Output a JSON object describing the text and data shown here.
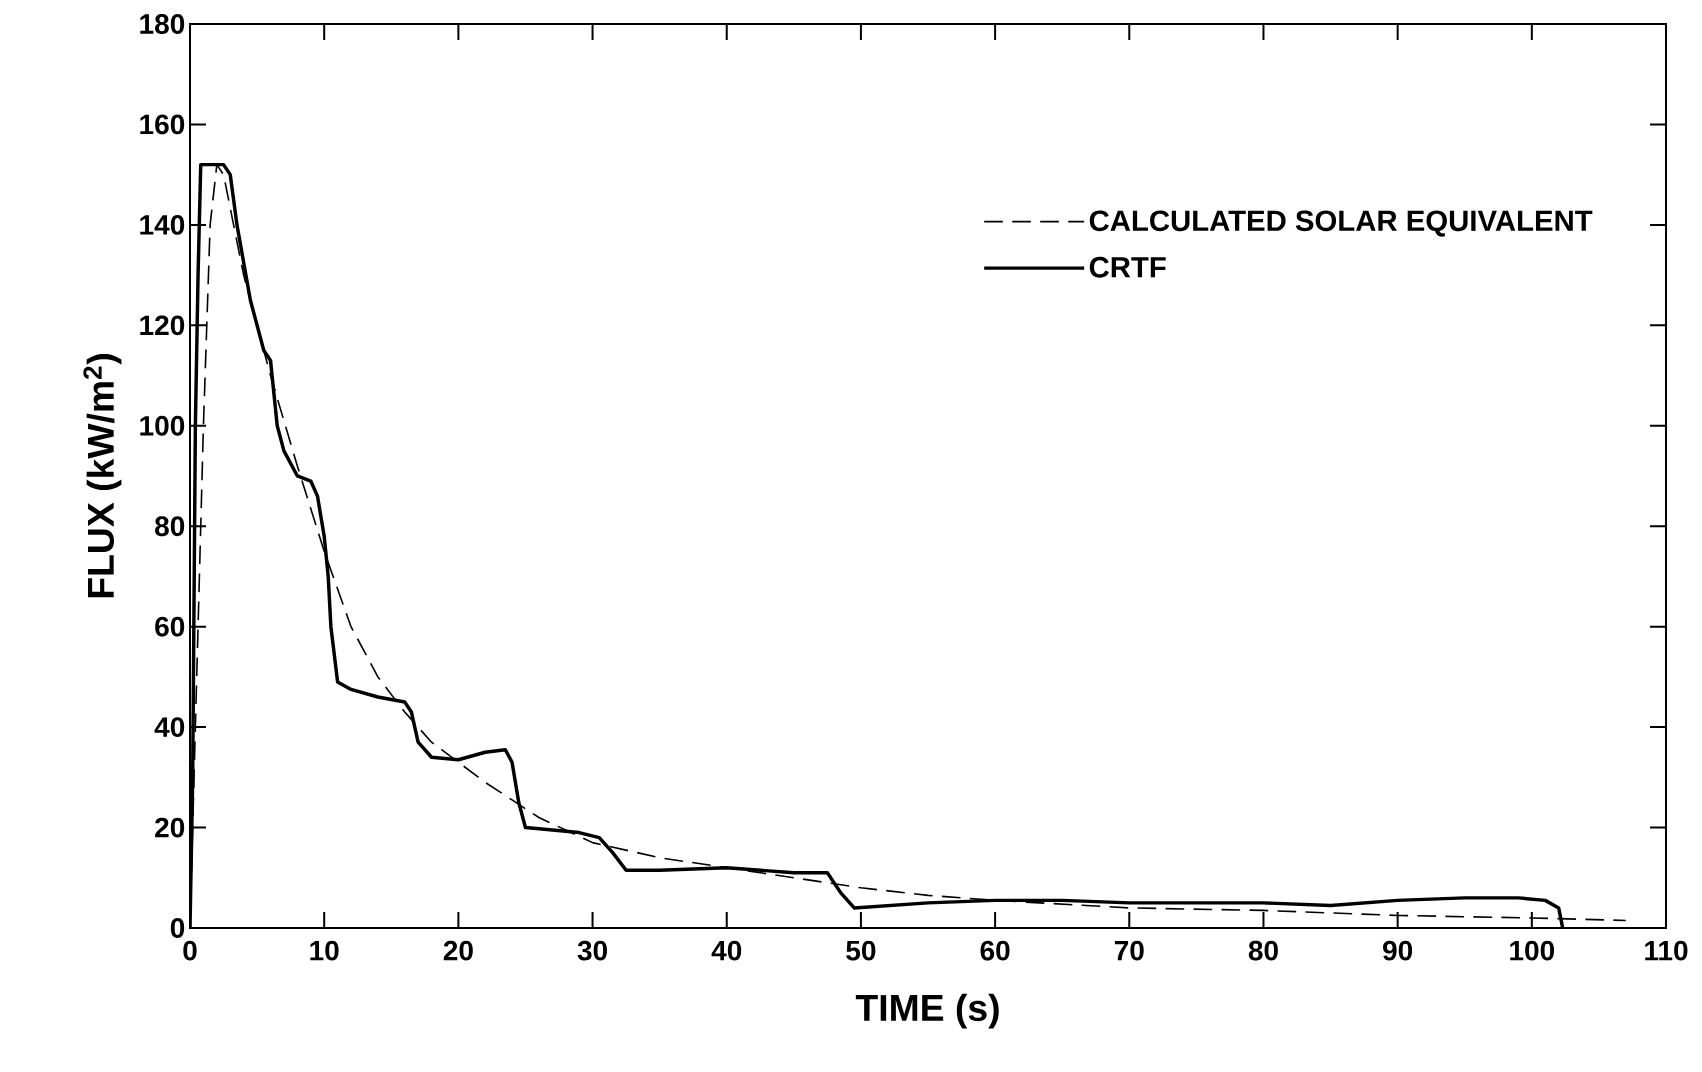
{
  "chart_data": {
    "type": "line",
    "xlabel": "TIME (s)",
    "ylabel": "FLUX (kW/m$^{2}$)",
    "xlim": [
      0,
      110
    ],
    "xticks": [
      0,
      10,
      20,
      30,
      40,
      50,
      60,
      70,
      80,
      90,
      100,
      110
    ],
    "ylim": [
      0,
      180
    ],
    "yticks": [
      0,
      20,
      40,
      60,
      80,
      100,
      120,
      140,
      160,
      180
    ],
    "grid": false,
    "legend": "top right",
    "marker": "none",
    "series": [
      {
        "name": "CALCULATED SOLAR EQUIVALENT",
        "color": "#000000",
        "line_style": "dashed",
        "x": [
          0,
          1,
          1.5,
          2,
          2.5,
          4,
          6,
          8,
          10,
          12,
          14,
          16,
          18,
          20,
          22,
          24,
          26,
          28,
          30,
          35,
          40,
          45,
          50,
          55,
          60,
          70,
          80,
          90,
          100,
          107
        ],
        "values": [
          0,
          100,
          140,
          152,
          150,
          130,
          110,
          92,
          75,
          60,
          50,
          43,
          37,
          33,
          29,
          25.5,
          22,
          19.5,
          17,
          14,
          12,
          10,
          8,
          6.5,
          5.5,
          4,
          3.5,
          2.5,
          2,
          1.5
        ]
      },
      {
        "name": "CRTF",
        "color": "#000000",
        "line_style": "solid",
        "x": [
          0,
          0.2,
          0.4,
          0.6,
          0.8,
          1,
          2.5,
          3,
          3.5,
          4.5,
          5.5,
          6,
          6.5,
          7,
          8,
          9,
          9.5,
          10,
          10.3,
          10.5,
          11,
          12,
          14,
          16,
          16.5,
          17,
          18,
          20,
          22,
          23.5,
          24,
          24.5,
          25,
          27,
          29,
          30.5,
          31.5,
          32.5,
          35,
          40,
          45,
          47.5,
          48.5,
          49.5,
          55,
          60,
          65,
          70,
          75,
          80,
          85,
          90,
          95,
          99,
          101,
          102,
          102.3
        ],
        "values": [
          0,
          30,
          100,
          130,
          152,
          152,
          152,
          150,
          140,
          125,
          115,
          113,
          100,
          95,
          90,
          89,
          86,
          78,
          70,
          60,
          49,
          47.5,
          46,
          45,
          43,
          37,
          34,
          33.5,
          35,
          35.5,
          33,
          25,
          20,
          19.5,
          19,
          18,
          15,
          11.5,
          11.5,
          12,
          11,
          11,
          7,
          4,
          5,
          5.5,
          5.5,
          5,
          5,
          5,
          4.5,
          5.5,
          6,
          6,
          5.5,
          4,
          0
        ]
      }
    ]
  }
}
